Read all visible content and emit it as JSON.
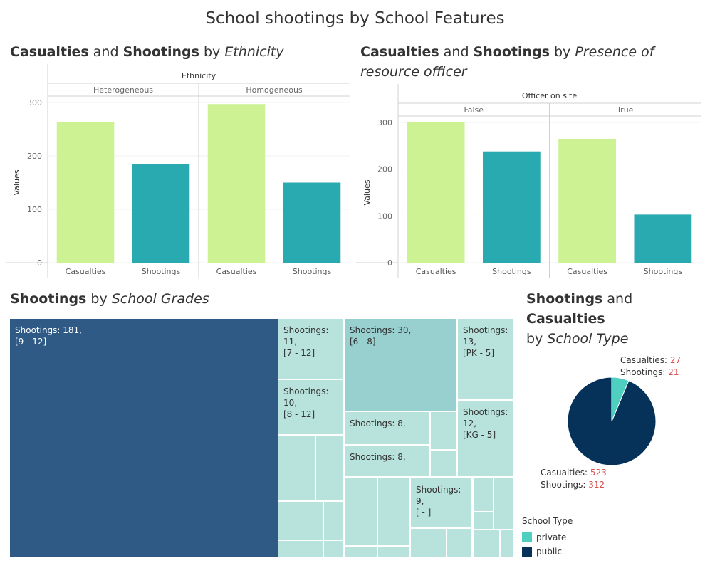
{
  "page": {
    "title": "School shootings by School Features"
  },
  "colors": {
    "casualties": "#ccf293",
    "shootings": "#29a9b0",
    "public": "#06325a",
    "private": "#4ecfc0",
    "treemap_main": "#2e5a85",
    "treemap_light": "#b8e3dc",
    "treemap_mid": "#98d0d0",
    "value_red": "#d9534f"
  },
  "sections": {
    "ethnicity": {
      "t1": "Casualties",
      "t2": " and ",
      "t3": "Shootings",
      "t4": " by ",
      "t5": "Ethnicity"
    },
    "officer": {
      "t1": "Casualties",
      "t2": " and ",
      "t3": "Shootings",
      "t4": " by ",
      "t5": "Presence of resource officer"
    },
    "grades": {
      "t1": "Shootings",
      "t2": " by ",
      "t3": "School Grades"
    },
    "type": {
      "t1": "Shootings",
      "t2": " and ",
      "t3": "Casualties",
      "t4": "by ",
      "t5": "School Type"
    }
  },
  "chart_data": [
    {
      "type": "bar",
      "header": "Ethnicity",
      "ylabel": "Values",
      "ylim": [
        0,
        300
      ],
      "yticks": [
        0,
        100,
        200,
        300
      ],
      "groups": [
        {
          "name": "Heterogeneous",
          "bars": [
            {
              "label": "Casualties",
              "value": 264
            },
            {
              "label": "Shootings",
              "value": 184
            }
          ]
        },
        {
          "name": "Homogeneous",
          "bars": [
            {
              "label": "Casualties",
              "value": 297
            },
            {
              "label": "Shootings",
              "value": 150
            }
          ]
        }
      ]
    },
    {
      "type": "bar",
      "header": "Officer on site",
      "ylabel": "Values",
      "ylim": [
        0,
        300
      ],
      "yticks": [
        0,
        100,
        200,
        300
      ],
      "groups": [
        {
          "name": "False",
          "bars": [
            {
              "label": "Casualties",
              "value": 300
            },
            {
              "label": "Shootings",
              "value": 238
            }
          ]
        },
        {
          "name": "True",
          "bars": [
            {
              "label": "Casualties",
              "value": 265
            },
            {
              "label": "Shootings",
              "value": 103
            }
          ]
        }
      ]
    },
    {
      "type": "treemap",
      "measure": "Shootings",
      "cells": [
        {
          "grade": "[9 - 12]",
          "value": 181,
          "label1": "Shootings: 181,",
          "label2": "[9 - 12]"
        },
        {
          "grade": "[6 - 8]",
          "value": 30,
          "label1": "Shootings: 30,",
          "label2": "[6 - 8]"
        },
        {
          "grade": "[PK - 5]",
          "value": 13,
          "label1": "Shootings:",
          "label2": "13,",
          "label3": "[PK - 5]"
        },
        {
          "grade": "[KG - 5]",
          "value": 12,
          "label1": "Shootings:",
          "label2": "12,",
          "label3": "[KG - 5]"
        },
        {
          "grade": "[7 - 12]",
          "value": 11,
          "label1": "Shootings:",
          "label2": "11,",
          "label3": "[7 - 12]"
        },
        {
          "grade": "[8 - 12]",
          "value": 10,
          "label1": "Shootings:",
          "label2": "10,",
          "label3": "[8 - 12]"
        },
        {
          "grade": "[ - ]",
          "value": 9,
          "label1": "Shootings:",
          "label2": "9,",
          "label3": "[ - ]"
        },
        {
          "grade": "",
          "value": 8,
          "label1": "Shootings: 8,"
        },
        {
          "grade": "",
          "value": 8,
          "label1": "Shootings: 8,"
        }
      ]
    },
    {
      "type": "pie",
      "legend_title": "School Type",
      "slices": [
        {
          "name": "private",
          "casualties": 27,
          "shootings": 21
        },
        {
          "name": "public",
          "casualties": 523,
          "shootings": 312
        }
      ],
      "label_casualties": "Casualties: ",
      "label_shootings": "Shootings: "
    }
  ]
}
